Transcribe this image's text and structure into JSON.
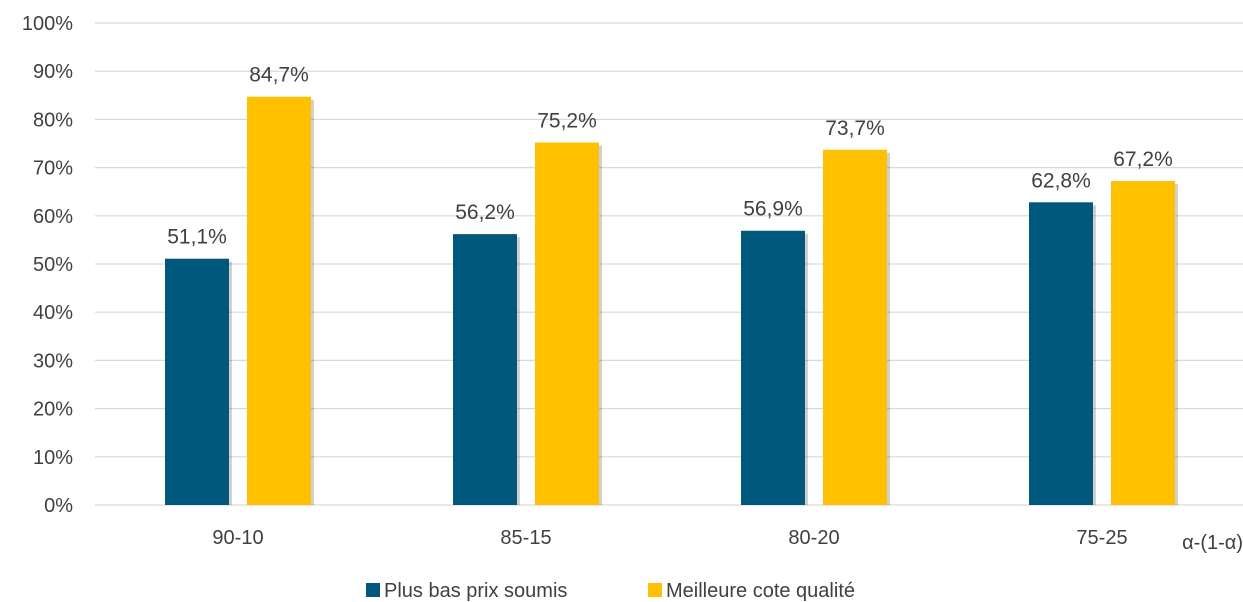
{
  "chart_data": {
    "type": "bar",
    "categories": [
      "90-10",
      "85-15",
      "80-20",
      "75-25"
    ],
    "series": [
      {
        "name": "Plus bas prix soumis",
        "values": [
          51.1,
          56.2,
          56.9,
          62.8
        ],
        "labels": [
          "51,1%",
          "56,2%",
          "56,9%",
          "62,8%"
        ],
        "color": "#00587C"
      },
      {
        "name": "Meilleure cote qualité",
        "values": [
          84.7,
          75.2,
          73.7,
          67.2
        ],
        "labels": [
          "84,7%",
          "75,2%",
          "73,7%",
          "67,2%"
        ],
        "color": "#FFC000"
      }
    ],
    "ylim": [
      0,
      100
    ],
    "yticks": [
      0,
      10,
      20,
      30,
      40,
      50,
      60,
      70,
      80,
      90,
      100
    ],
    "ytick_labels": [
      "0%",
      "10%",
      "20%",
      "30%",
      "40%",
      "50%",
      "60%",
      "70%",
      "80%",
      "90%",
      "100%"
    ],
    "xlabel": "α-(1-α)",
    "grid": true,
    "legend_position": "bottom-center",
    "gridline_color": "#D9D9D9"
  }
}
